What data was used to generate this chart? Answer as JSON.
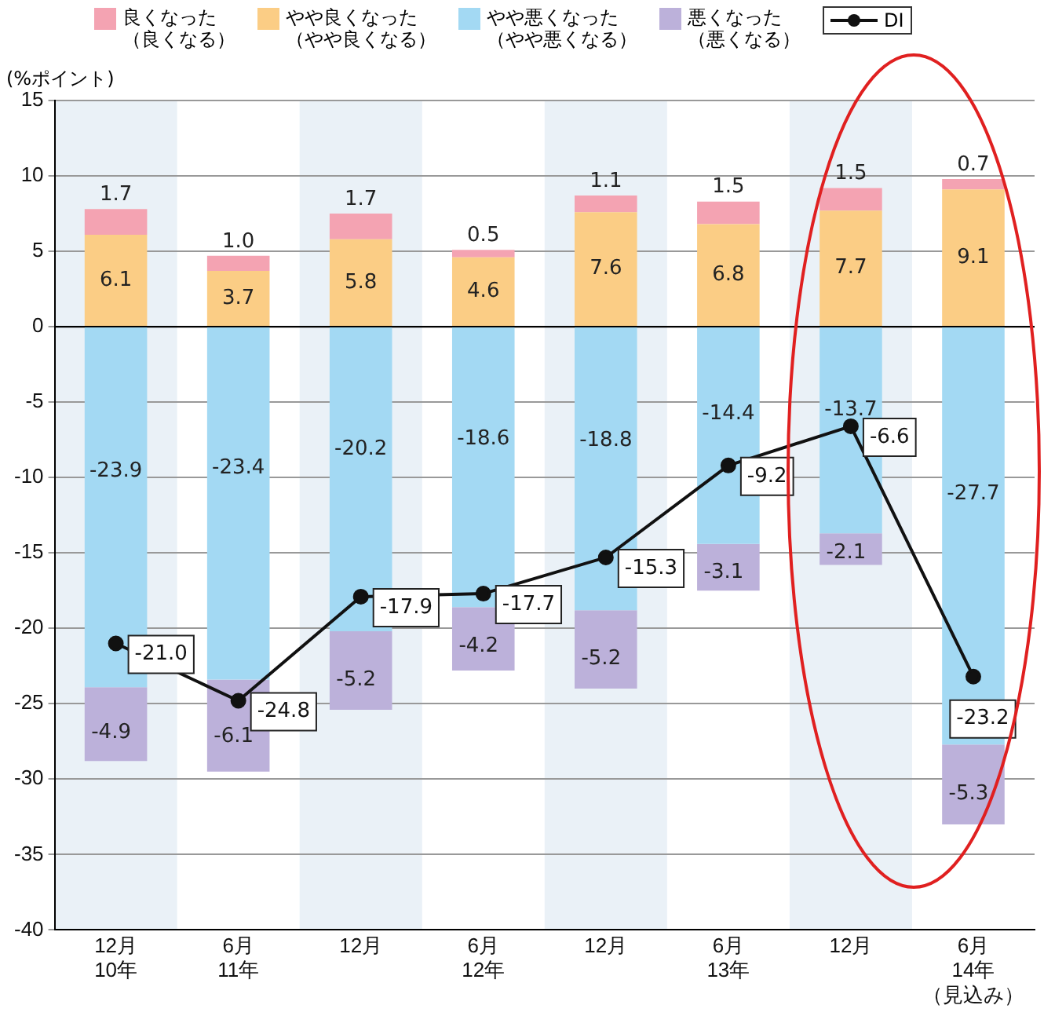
{
  "chart_data": {
    "type": "bar",
    "stacked": true,
    "ylabel": "(%ポイント)",
    "categories": [
      "12月10年",
      "6月11年",
      "12月",
      "6月12年",
      "12月",
      "6月13年",
      "12月",
      "6月14年（見込み）"
    ],
    "series": [
      {
        "name": "やや良くなった（やや良くなる）",
        "color": "#fbcd85",
        "values": [
          6.1,
          3.7,
          5.8,
          4.6,
          7.6,
          6.8,
          7.7,
          9.1
        ],
        "value_labels": [
          "6.1",
          "3.7",
          "5.8",
          "4.6",
          "7.6",
          "6.8",
          "7.7",
          "9.1"
        ]
      },
      {
        "name": "良くなった（良くなる）",
        "color": "#f4a3b2",
        "values": [
          1.7,
          1.0,
          1.7,
          0.5,
          1.1,
          1.5,
          1.5,
          0.7
        ],
        "value_labels": [
          "1.7",
          "1.0",
          "1.7",
          "0.5",
          "1.1",
          "1.5",
          "1.5",
          "0.7"
        ]
      },
      {
        "name": "やや悪くなった（やや悪くなる）",
        "color": "#a3d9f3",
        "values": [
          -23.9,
          -23.4,
          -20.2,
          -18.6,
          -18.8,
          -14.4,
          -13.7,
          -27.7
        ],
        "value_labels": [
          "-23.9",
          "-23.4",
          "-20.2",
          "-18.6",
          "-18.8",
          "-14.4",
          "-13.7",
          "-27.7"
        ]
      },
      {
        "name": "悪くなった（悪くなる）",
        "color": "#bcb1da",
        "values": [
          -4.9,
          -6.1,
          -5.2,
          -4.2,
          -5.2,
          -3.1,
          -2.1,
          -5.3
        ],
        "value_labels": [
          "-4.9",
          "-6.1",
          "-5.2",
          "-4.2",
          "-5.2",
          "-3.1",
          "-2.1",
          "-5.3"
        ]
      },
      {
        "name": "DI",
        "type": "line",
        "color": "#111111",
        "marker": "circle",
        "line_style": "solid",
        "values": [
          -21.0,
          -24.8,
          -17.9,
          -17.7,
          -15.3,
          -9.2,
          -6.6,
          -23.2
        ],
        "value_labels": [
          "-21.0",
          "-24.8",
          "-17.9",
          "-17.7",
          "-15.3",
          "-9.2",
          "-6.6",
          "-23.2"
        ]
      }
    ],
    "ylim": [
      -40,
      15
    ],
    "yticks": [
      -40,
      -35,
      -30,
      -25,
      -20,
      -15,
      -10,
      -5,
      0,
      5,
      10,
      15
    ],
    "grid": "y",
    "legend": "top"
  }
}
